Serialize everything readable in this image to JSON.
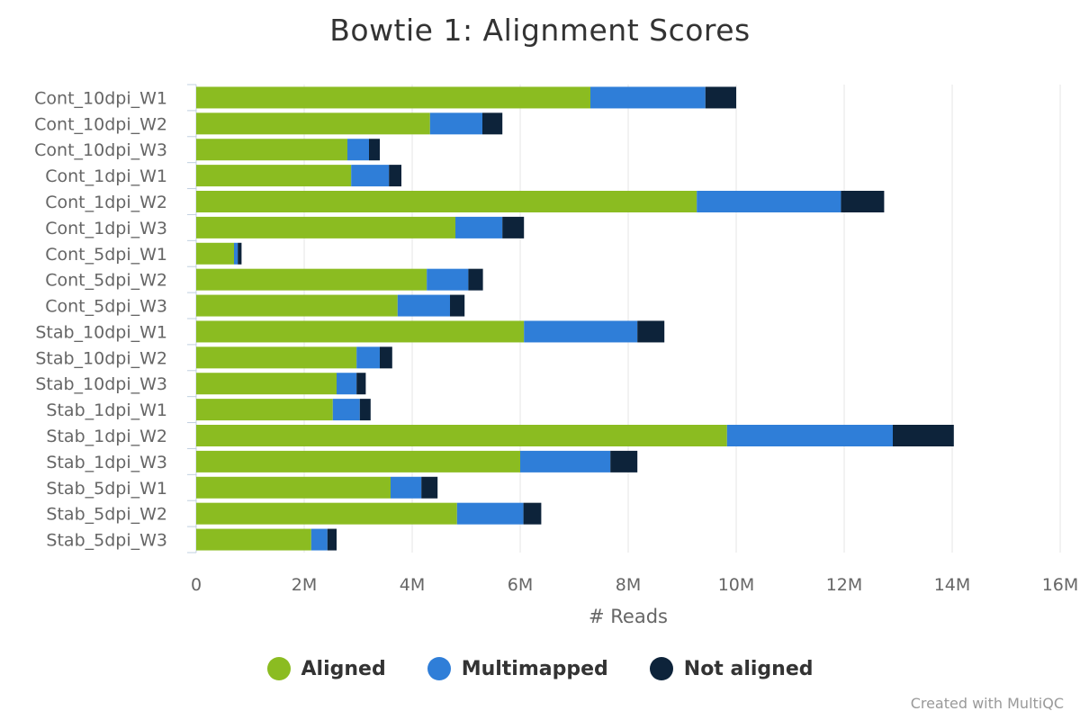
{
  "chart_data": {
    "type": "bar",
    "orientation": "horizontal",
    "stacked": true,
    "title": "Bowtie 1: Alignment Scores",
    "xlabel": "# Reads",
    "ylabel": "",
    "xlim": [
      0,
      16000000
    ],
    "x_tick_labels": [
      "0",
      "2M",
      "4M",
      "6M",
      "8M",
      "10M",
      "12M",
      "14M",
      "16M"
    ],
    "grid": true,
    "legend_position": "bottom",
    "categories": [
      "Cont_10dpi_W1",
      "Cont_10dpi_W2",
      "Cont_10dpi_W3",
      "Cont_1dpi_W1",
      "Cont_1dpi_W2",
      "Cont_1dpi_W3",
      "Cont_5dpi_W1",
      "Cont_5dpi_W2",
      "Cont_5dpi_W3",
      "Stab_10dpi_W1",
      "Stab_10dpi_W2",
      "Stab_10dpi_W3",
      "Stab_1dpi_W1",
      "Stab_1dpi_W2",
      "Stab_1dpi_W3",
      "Stab_5dpi_W1",
      "Stab_5dpi_W2",
      "Stab_5dpi_W3"
    ],
    "series": [
      {
        "name": "Aligned",
        "color": "#8bbc21",
        "values": [
          7300000,
          4330000,
          2800000,
          2870000,
          9270000,
          4800000,
          700000,
          4270000,
          3730000,
          6070000,
          2970000,
          2600000,
          2530000,
          9830000,
          6000000,
          3600000,
          4830000,
          2130000
        ]
      },
      {
        "name": "Multimapped",
        "color": "#2f7ed8",
        "values": [
          2130000,
          970000,
          400000,
          700000,
          2670000,
          870000,
          70000,
          770000,
          970000,
          2100000,
          430000,
          370000,
          500000,
          3070000,
          1670000,
          570000,
          1230000,
          300000
        ]
      },
      {
        "name": "Not aligned",
        "color": "#0d233a",
        "values": [
          570000,
          370000,
          200000,
          230000,
          800000,
          400000,
          70000,
          270000,
          270000,
          500000,
          230000,
          170000,
          200000,
          1130000,
          500000,
          300000,
          330000,
          170000
        ]
      }
    ]
  },
  "credits": "Created with MultiQC"
}
